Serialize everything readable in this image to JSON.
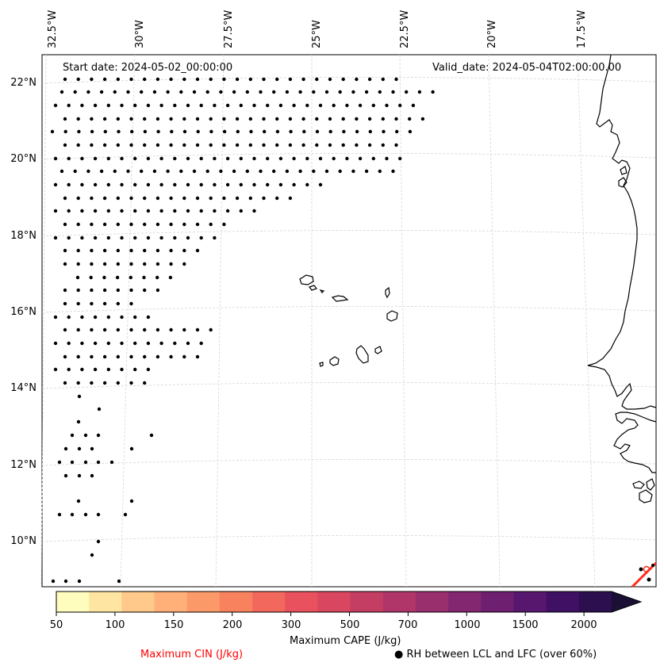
{
  "map": {
    "start_date": "Start date: 2024-05-02_00:00:00",
    "valid_date": "Valid_date: 2024-05-04T02:00:00.00",
    "lon_labels": [
      "32.5°W",
      "30°W",
      "27.5°W",
      "25°W",
      "22.5°W",
      "20°W",
      "17.5°W"
    ],
    "lat_labels": [
      "22°N",
      "20°N",
      "18°N",
      "16°N",
      "14°N",
      "12°N",
      "10°N"
    ]
  },
  "colorbar": {
    "ticks": [
      "50",
      "100",
      "150",
      "200",
      "300",
      "500",
      "700",
      "1000",
      "1500",
      "2000"
    ],
    "colors": [
      "#fffdbd",
      "#fee6a2",
      "#fec98a",
      "#feb078",
      "#fb9a68",
      "#f8825e",
      "#f3685c",
      "#e8515d",
      "#d8465f",
      "#c43d63",
      "#b0366a",
      "#9a2f6e",
      "#832870",
      "#6e1f70",
      "#58176f",
      "#3f1063",
      "#2b0f4e",
      "#1a1035"
    ],
    "label": "Maximum CAPE (J/kg)"
  },
  "legend": {
    "cin_label": "Maximum CIN (J/kg)",
    "cin_color": "#ff0000",
    "rh_label": "● RH between LCL and LFC (over 60%)"
  }
}
